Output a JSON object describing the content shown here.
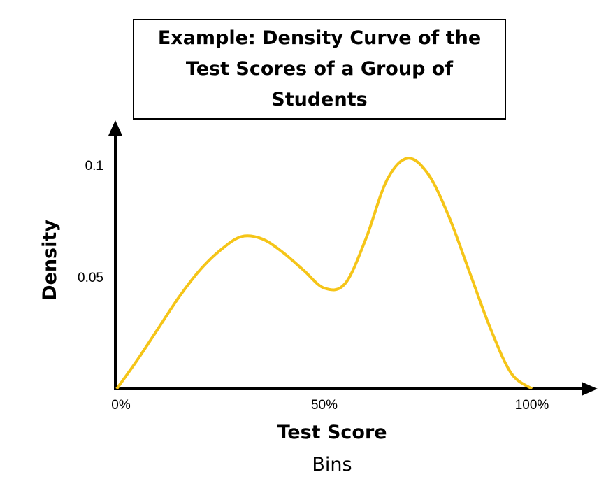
{
  "chart_data": {
    "type": "line",
    "title": "Example: Density Curve of the Test Scores of a Group of Students",
    "xlabel": "Test Score",
    "ylabel": "Density",
    "caption": "Bins",
    "x_ticks": [
      {
        "value": 0,
        "label": "0%"
      },
      {
        "value": 50,
        "label": "50%"
      },
      {
        "value": 100,
        "label": "100%"
      }
    ],
    "y_ticks": [
      {
        "value": 0.05,
        "label": "0.05"
      },
      {
        "value": 0.1,
        "label": "0.1"
      }
    ],
    "xlim": [
      0,
      115
    ],
    "ylim": [
      0,
      0.1
    ],
    "grid": false,
    "series": [
      {
        "color": "#F5C518",
        "x": [
          0,
          5,
          10,
          15,
          20,
          25,
          30,
          35,
          40,
          45,
          50,
          55,
          60,
          65,
          70,
          75,
          80,
          85,
          90,
          95,
          100
        ],
        "y": [
          0.0,
          0.013,
          0.027,
          0.041,
          0.053,
          0.062,
          0.068,
          0.067,
          0.061,
          0.053,
          0.045,
          0.047,
          0.067,
          0.093,
          0.103,
          0.096,
          0.077,
          0.052,
          0.027,
          0.007,
          0.0
        ]
      }
    ]
  }
}
